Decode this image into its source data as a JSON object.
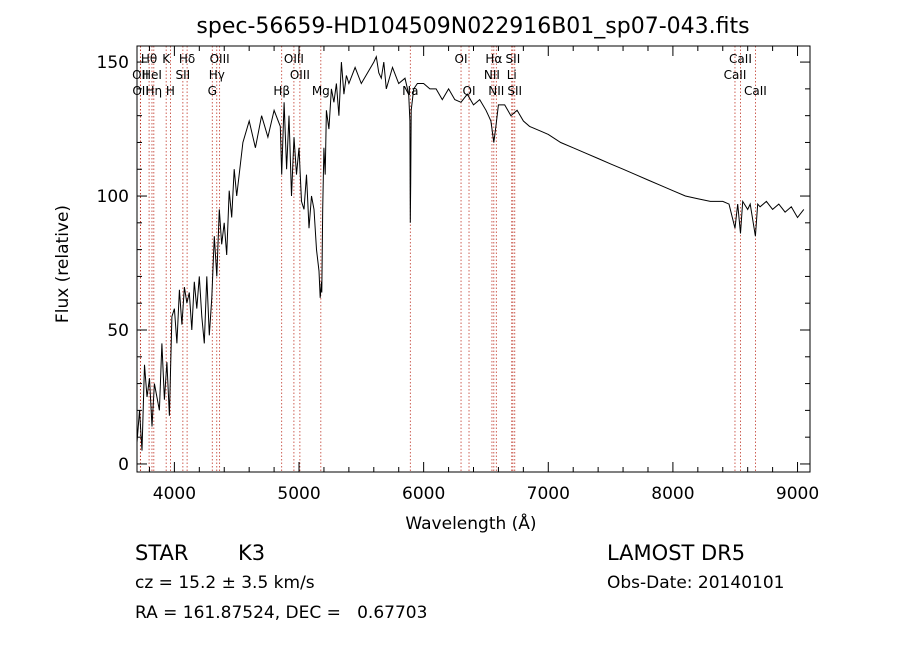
{
  "chart_data": {
    "type": "line",
    "title": "spec-56659-HD104509N022916B01_sp07-043.fits",
    "xlabel": "Wavelength (Å)",
    "ylabel": "Flux (relative)",
    "xlim": [
      3700,
      9100
    ],
    "ylim": [
      -3,
      156
    ],
    "xticks": [
      4000,
      5000,
      6000,
      7000,
      8000,
      9000
    ],
    "yticks": [
      0,
      50,
      100,
      150
    ],
    "grid": false,
    "series": [
      {
        "line_color": "#000000",
        "x": [
          3700,
          3720,
          3740,
          3760,
          3780,
          3800,
          3820,
          3840,
          3860,
          3880,
          3900,
          3920,
          3940,
          3960,
          3980,
          4000,
          4020,
          4040,
          4060,
          4080,
          4100,
          4120,
          4140,
          4160,
          4180,
          4200,
          4220,
          4240,
          4260,
          4280,
          4300,
          4320,
          4340,
          4360,
          4380,
          4400,
          4420,
          4440,
          4460,
          4480,
          4500,
          4550,
          4600,
          4650,
          4700,
          4750,
          4800,
          4850,
          4861,
          4880,
          4900,
          4920,
          4940,
          4960,
          4980,
          5000,
          5020,
          5040,
          5060,
          5080,
          5100,
          5120,
          5140,
          5160,
          5170,
          5180,
          5183,
          5190,
          5200,
          5210,
          5220,
          5240,
          5260,
          5280,
          5300,
          5320,
          5340,
          5360,
          5380,
          5400,
          5450,
          5500,
          5550,
          5600,
          5620,
          5640,
          5660,
          5680,
          5700,
          5750,
          5800,
          5850,
          5880,
          5890,
          5893,
          5896,
          5900,
          5920,
          5950,
          6000,
          6050,
          6100,
          6150,
          6200,
          6250,
          6300,
          6350,
          6400,
          6450,
          6500,
          6520,
          6540,
          6563,
          6580,
          6600,
          6650,
          6700,
          6750,
          6800,
          6850,
          6900,
          6950,
          7000,
          7100,
          7200,
          7300,
          7400,
          7500,
          7600,
          7700,
          7800,
          7900,
          8000,
          8100,
          8200,
          8300,
          8400,
          8450,
          8498,
          8520,
          8542,
          8560,
          8600,
          8620,
          8662,
          8680,
          8700,
          8750,
          8800,
          8850,
          8900,
          8950,
          9000,
          9050
        ],
        "y": [
          8,
          20,
          5,
          37,
          25,
          32,
          14,
          30,
          25,
          20,
          45,
          24,
          38,
          18,
          55,
          58,
          45,
          65,
          52,
          66,
          60,
          64,
          50,
          68,
          58,
          70,
          55,
          45,
          70,
          48,
          62,
          85,
          70,
          95,
          82,
          90,
          78,
          102,
          92,
          110,
          100,
          120,
          128,
          118,
          130,
          122,
          132,
          126,
          108,
          135,
          110,
          130,
          100,
          122,
          108,
          118,
          98,
          95,
          108,
          88,
          100,
          95,
          80,
          72,
          62,
          68,
          64,
          95,
          118,
          108,
          132,
          125,
          140,
          135,
          142,
          130,
          150,
          138,
          145,
          142,
          148,
          142,
          146,
          150,
          152,
          146,
          144,
          150,
          140,
          148,
          142,
          144,
          138,
          128,
          90,
          105,
          132,
          140,
          142,
          142,
          140,
          140,
          136,
          140,
          136,
          135,
          138,
          134,
          136,
          132,
          130,
          128,
          120,
          126,
          134,
          134,
          130,
          132,
          128,
          126,
          125,
          124,
          123,
          120,
          118,
          116,
          114,
          112,
          110,
          108,
          106,
          104,
          102,
          100,
          99,
          98,
          98,
          97,
          88,
          97,
          86,
          98,
          95,
          97,
          85,
          97,
          96,
          98,
          95,
          97,
          94,
          96,
          92,
          95
        ]
      }
    ],
    "line_annotations": [
      {
        "label": "Hθ",
        "x": 3797,
        "row": 1
      },
      {
        "label": "OII",
        "x": 3727,
        "row": 2
      },
      {
        "label": "OII",
        "x": 3729,
        "row": 3
      },
      {
        "label": "HeI",
        "x": 3820,
        "row": 2
      },
      {
        "label": "Hη",
        "x": 3835,
        "row": 3
      },
      {
        "label": "K",
        "x": 3934,
        "row": 1
      },
      {
        "label": "H",
        "x": 3968,
        "row": 3
      },
      {
        "label": "SII",
        "x": 4068,
        "row": 2
      },
      {
        "label": "Hδ",
        "x": 4102,
        "row": 1
      },
      {
        "label": "OIII",
        "x": 4363,
        "row": 1
      },
      {
        "label": "Hγ",
        "x": 4340,
        "row": 2
      },
      {
        "label": "G",
        "x": 4304,
        "row": 3
      },
      {
        "label": "Hβ",
        "x": 4861,
        "row": 3
      },
      {
        "label": "OIII",
        "x": 4959,
        "row": 1
      },
      {
        "label": "OIII",
        "x": 5007,
        "row": 2
      },
      {
        "label": "Mg",
        "x": 5175,
        "row": 3
      },
      {
        "label": "Na",
        "x": 5893,
        "row": 4
      },
      {
        "label": "OI",
        "x": 6300,
        "row": 1
      },
      {
        "label": "OI",
        "x": 6364,
        "row": 3
      },
      {
        "label": "Hα",
        "x": 6563,
        "row": 1
      },
      {
        "label": "NII",
        "x": 6548,
        "row": 2
      },
      {
        "label": "NII",
        "x": 6583,
        "row": 3
      },
      {
        "label": "SII",
        "x": 6716,
        "row": 1
      },
      {
        "label": "Li",
        "x": 6707,
        "row": 2
      },
      {
        "label": "SII",
        "x": 6731,
        "row": 3
      },
      {
        "label": "CaII",
        "x": 8542,
        "row": 1
      },
      {
        "label": "CaII",
        "x": 8498,
        "row": 2
      },
      {
        "label": "CaII",
        "x": 8662,
        "row": 3
      }
    ]
  },
  "footer": {
    "object_class": "STAR",
    "subclass": "K3",
    "survey": "LAMOST DR5",
    "redshift_line": "cz = 15.2 ± 3.5 km/s",
    "obs_date_line": "Obs-Date: 20140101",
    "coords_line": "RA = 161.87524, DEC =   0.67703"
  }
}
